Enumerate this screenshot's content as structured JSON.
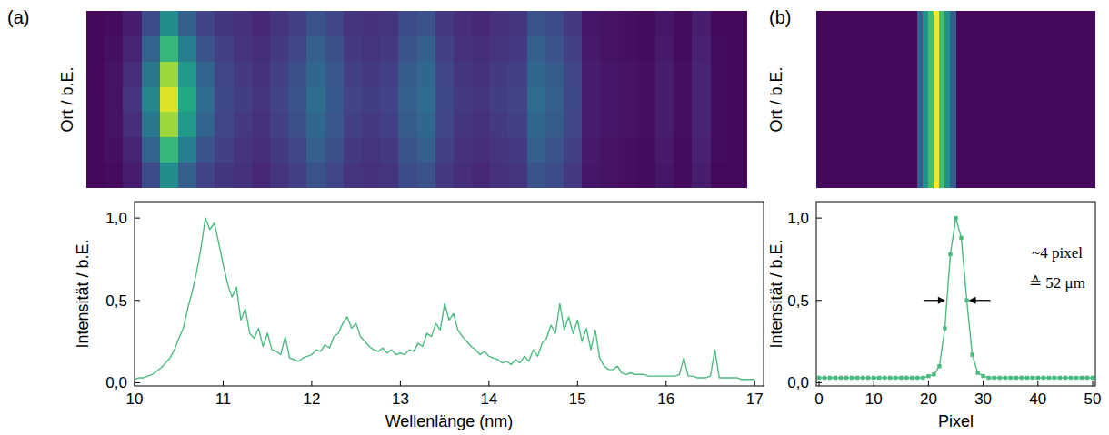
{
  "chart_data": [
    {
      "type": "heatmap",
      "title": "(a)",
      "y_label": "Ort / b.E.",
      "tick_labels": false,
      "cells": [
        [
          0.02,
          0.03,
          0.08,
          0.23,
          0.48,
          0.3,
          0.2,
          0.16,
          0.14,
          0.11,
          0.15,
          0.19,
          0.26,
          0.21,
          0.15,
          0.14,
          0.15,
          0.23,
          0.26,
          0.17,
          0.13,
          0.11,
          0.14,
          0.15,
          0.26,
          0.23,
          0.17,
          0.06,
          0.05,
          0.04,
          0.03,
          0.06,
          0.03,
          0.08,
          0.02,
          0.02
        ],
        [
          0.02,
          0.04,
          0.1,
          0.32,
          0.66,
          0.42,
          0.26,
          0.19,
          0.15,
          0.13,
          0.17,
          0.21,
          0.3,
          0.24,
          0.17,
          0.15,
          0.17,
          0.26,
          0.3,
          0.19,
          0.14,
          0.13,
          0.15,
          0.17,
          0.3,
          0.26,
          0.19,
          0.07,
          0.05,
          0.04,
          0.03,
          0.07,
          0.03,
          0.09,
          0.03,
          0.02
        ],
        [
          0.02,
          0.05,
          0.13,
          0.4,
          0.85,
          0.54,
          0.32,
          0.21,
          0.17,
          0.14,
          0.19,
          0.24,
          0.33,
          0.27,
          0.19,
          0.17,
          0.19,
          0.29,
          0.33,
          0.21,
          0.16,
          0.14,
          0.17,
          0.19,
          0.33,
          0.29,
          0.21,
          0.08,
          0.06,
          0.05,
          0.04,
          0.08,
          0.04,
          0.1,
          0.03,
          0.02
        ],
        [
          0.02,
          0.05,
          0.15,
          0.45,
          0.95,
          0.6,
          0.35,
          0.22,
          0.18,
          0.15,
          0.2,
          0.25,
          0.35,
          0.28,
          0.2,
          0.18,
          0.2,
          0.3,
          0.35,
          0.22,
          0.17,
          0.15,
          0.18,
          0.2,
          0.35,
          0.3,
          0.22,
          0.08,
          0.06,
          0.05,
          0.04,
          0.08,
          0.04,
          0.1,
          0.03,
          0.02
        ],
        [
          0.02,
          0.05,
          0.13,
          0.4,
          0.85,
          0.54,
          0.32,
          0.21,
          0.17,
          0.14,
          0.19,
          0.24,
          0.33,
          0.27,
          0.19,
          0.17,
          0.19,
          0.29,
          0.33,
          0.21,
          0.16,
          0.14,
          0.17,
          0.19,
          0.33,
          0.29,
          0.21,
          0.08,
          0.06,
          0.05,
          0.04,
          0.08,
          0.04,
          0.1,
          0.03,
          0.02
        ],
        [
          0.02,
          0.04,
          0.1,
          0.32,
          0.66,
          0.42,
          0.26,
          0.19,
          0.15,
          0.13,
          0.17,
          0.21,
          0.3,
          0.24,
          0.17,
          0.15,
          0.17,
          0.26,
          0.3,
          0.19,
          0.14,
          0.13,
          0.15,
          0.17,
          0.3,
          0.26,
          0.19,
          0.07,
          0.05,
          0.04,
          0.03,
          0.07,
          0.03,
          0.09,
          0.03,
          0.02
        ],
        [
          0.02,
          0.03,
          0.08,
          0.23,
          0.48,
          0.3,
          0.2,
          0.16,
          0.14,
          0.11,
          0.15,
          0.19,
          0.26,
          0.21,
          0.15,
          0.14,
          0.15,
          0.23,
          0.26,
          0.17,
          0.13,
          0.11,
          0.14,
          0.15,
          0.26,
          0.23,
          0.17,
          0.06,
          0.05,
          0.04,
          0.03,
          0.06,
          0.03,
          0.08,
          0.02,
          0.02
        ]
      ]
    },
    {
      "type": "line",
      "x_label": "Wellenlänge (nm)",
      "y_label": "Intensität / b.E.",
      "xlim": [
        10,
        17.1
      ],
      "ylim": [
        -0.02,
        1.1
      ],
      "xticks": [
        10,
        11,
        12,
        13,
        14,
        15,
        16,
        17
      ],
      "yticks": [
        {
          "value": 0,
          "label": "0,0"
        },
        {
          "value": 0.5,
          "label": "0,5"
        },
        {
          "value": 1,
          "label": "1,0"
        }
      ],
      "color": "#4cbb7f",
      "x": [
        10,
        10.05,
        10.1,
        10.15,
        10.2,
        10.25,
        10.3,
        10.35,
        10.4,
        10.45,
        10.5,
        10.55,
        10.6,
        10.65,
        10.7,
        10.75,
        10.8,
        10.85,
        10.9,
        10.95,
        11,
        11.05,
        11.1,
        11.15,
        11.2,
        11.25,
        11.3,
        11.35,
        11.4,
        11.45,
        11.5,
        11.55,
        11.6,
        11.65,
        11.7,
        11.75,
        11.8,
        11.85,
        11.9,
        11.95,
        12,
        12.05,
        12.1,
        12.15,
        12.2,
        12.25,
        12.3,
        12.35,
        12.4,
        12.45,
        12.5,
        12.55,
        12.6,
        12.65,
        12.7,
        12.75,
        12.8,
        12.85,
        12.9,
        12.95,
        13,
        13.05,
        13.1,
        13.15,
        13.2,
        13.25,
        13.3,
        13.35,
        13.4,
        13.45,
        13.5,
        13.55,
        13.6,
        13.65,
        13.7,
        13.75,
        13.8,
        13.85,
        13.9,
        13.95,
        14,
        14.05,
        14.1,
        14.15,
        14.2,
        14.25,
        14.3,
        14.35,
        14.4,
        14.45,
        14.5,
        14.55,
        14.6,
        14.65,
        14.7,
        14.75,
        14.8,
        14.85,
        14.9,
        14.95,
        15,
        15.05,
        15.1,
        15.15,
        15.2,
        15.25,
        15.3,
        15.35,
        15.4,
        15.45,
        15.5,
        15.55,
        15.6,
        15.65,
        15.7,
        15.75,
        15.8,
        15.85,
        15.9,
        15.95,
        16,
        16.05,
        16.1,
        16.15,
        16.2,
        16.25,
        16.3,
        16.35,
        16.4,
        16.45,
        16.5,
        16.55,
        16.6,
        16.65,
        16.7,
        16.75,
        16.8,
        16.85,
        16.9,
        16.95,
        17
      ],
      "values": [
        0.02,
        0.03,
        0.03,
        0.04,
        0.05,
        0.07,
        0.09,
        0.12,
        0.15,
        0.2,
        0.27,
        0.33,
        0.45,
        0.55,
        0.67,
        0.82,
        1.0,
        0.93,
        0.97,
        0.85,
        0.72,
        0.6,
        0.52,
        0.58,
        0.38,
        0.45,
        0.3,
        0.27,
        0.33,
        0.22,
        0.3,
        0.2,
        0.19,
        0.17,
        0.28,
        0.15,
        0.14,
        0.13,
        0.15,
        0.16,
        0.17,
        0.2,
        0.19,
        0.23,
        0.21,
        0.28,
        0.3,
        0.36,
        0.4,
        0.33,
        0.36,
        0.28,
        0.25,
        0.22,
        0.2,
        0.19,
        0.21,
        0.18,
        0.2,
        0.17,
        0.18,
        0.17,
        0.2,
        0.19,
        0.24,
        0.22,
        0.3,
        0.28,
        0.36,
        0.32,
        0.48,
        0.38,
        0.42,
        0.32,
        0.28,
        0.25,
        0.22,
        0.2,
        0.17,
        0.19,
        0.16,
        0.15,
        0.14,
        0.12,
        0.13,
        0.11,
        0.14,
        0.12,
        0.16,
        0.13,
        0.2,
        0.16,
        0.24,
        0.27,
        0.35,
        0.3,
        0.48,
        0.32,
        0.4,
        0.3,
        0.38,
        0.25,
        0.33,
        0.2,
        0.32,
        0.15,
        0.1,
        0.08,
        0.08,
        0.1,
        0.06,
        0.05,
        0.06,
        0.05,
        0.05,
        0.05,
        0.04,
        0.04,
        0.04,
        0.04,
        0.04,
        0.04,
        0.04,
        0.05,
        0.15,
        0.04,
        0.04,
        0.03,
        0.03,
        0.03,
        0.04,
        0.2,
        0.03,
        0.03,
        0.03,
        0.03,
        0.03,
        0.02,
        0.02,
        0.02,
        0.02
      ]
    },
    {
      "type": "heatmap",
      "title": "(b)",
      "y_label": "Ort / b.E.",
      "tick_labels": false,
      "cells": [
        [
          0.02,
          0.02,
          0.02,
          0.02,
          0.02,
          0.02,
          0.02,
          0.02,
          0.02,
          0.02,
          0.02,
          0.02,
          0.02,
          0.02,
          0.02,
          0.02,
          0.02,
          0.02,
          0.3,
          0.5,
          0.7,
          1.0,
          0.7,
          0.5,
          0.3,
          0.02,
          0.02,
          0.02,
          0.02,
          0.02,
          0.02,
          0.02,
          0.02,
          0.02,
          0.02,
          0.02,
          0.02,
          0.02,
          0.02,
          0.02,
          0.02,
          0.02,
          0.02,
          0.02,
          0.02,
          0.02,
          0.02,
          0.02,
          0.02,
          0.02
        ]
      ]
    },
    {
      "type": "line",
      "x_label": "Pixel",
      "y_label": "Intensität / b.E.",
      "xlim": [
        -0.5,
        50.5
      ],
      "ylim": [
        -0.02,
        1.1
      ],
      "xticks": [
        0,
        10,
        20,
        30,
        40,
        50
      ],
      "yticks": [
        {
          "value": 0,
          "label": "0,0"
        },
        {
          "value": 0.5,
          "label": "0,5"
        },
        {
          "value": 1,
          "label": "1,0"
        }
      ],
      "color": "#4cbb7f",
      "marker": "square",
      "x": [
        0,
        1,
        2,
        3,
        4,
        5,
        6,
        7,
        8,
        9,
        10,
        11,
        12,
        13,
        14,
        15,
        16,
        17,
        18,
        19,
        20,
        21,
        22,
        23,
        24,
        25,
        26,
        27,
        28,
        29,
        30,
        31,
        32,
        33,
        34,
        35,
        36,
        37,
        38,
        39,
        40,
        41,
        42,
        43,
        44,
        45,
        46,
        47,
        48,
        49,
        50
      ],
      "values": [
        0.03,
        0.03,
        0.03,
        0.03,
        0.03,
        0.03,
        0.03,
        0.03,
        0.03,
        0.03,
        0.03,
        0.03,
        0.03,
        0.03,
        0.03,
        0.03,
        0.03,
        0.03,
        0.03,
        0.03,
        0.04,
        0.05,
        0.1,
        0.33,
        0.78,
        1.0,
        0.88,
        0.5,
        0.17,
        0.06,
        0.04,
        0.03,
        0.03,
        0.03,
        0.03,
        0.03,
        0.03,
        0.03,
        0.03,
        0.03,
        0.03,
        0.03,
        0.03,
        0.03,
        0.03,
        0.03,
        0.03,
        0.03,
        0.03,
        0.03,
        0.03
      ],
      "annotation": {
        "text": [
          "~4 pixel",
          "≙ 52 μm"
        ],
        "x": [
          23.4,
          27.0
        ],
        "y": 0.5
      }
    }
  ]
}
